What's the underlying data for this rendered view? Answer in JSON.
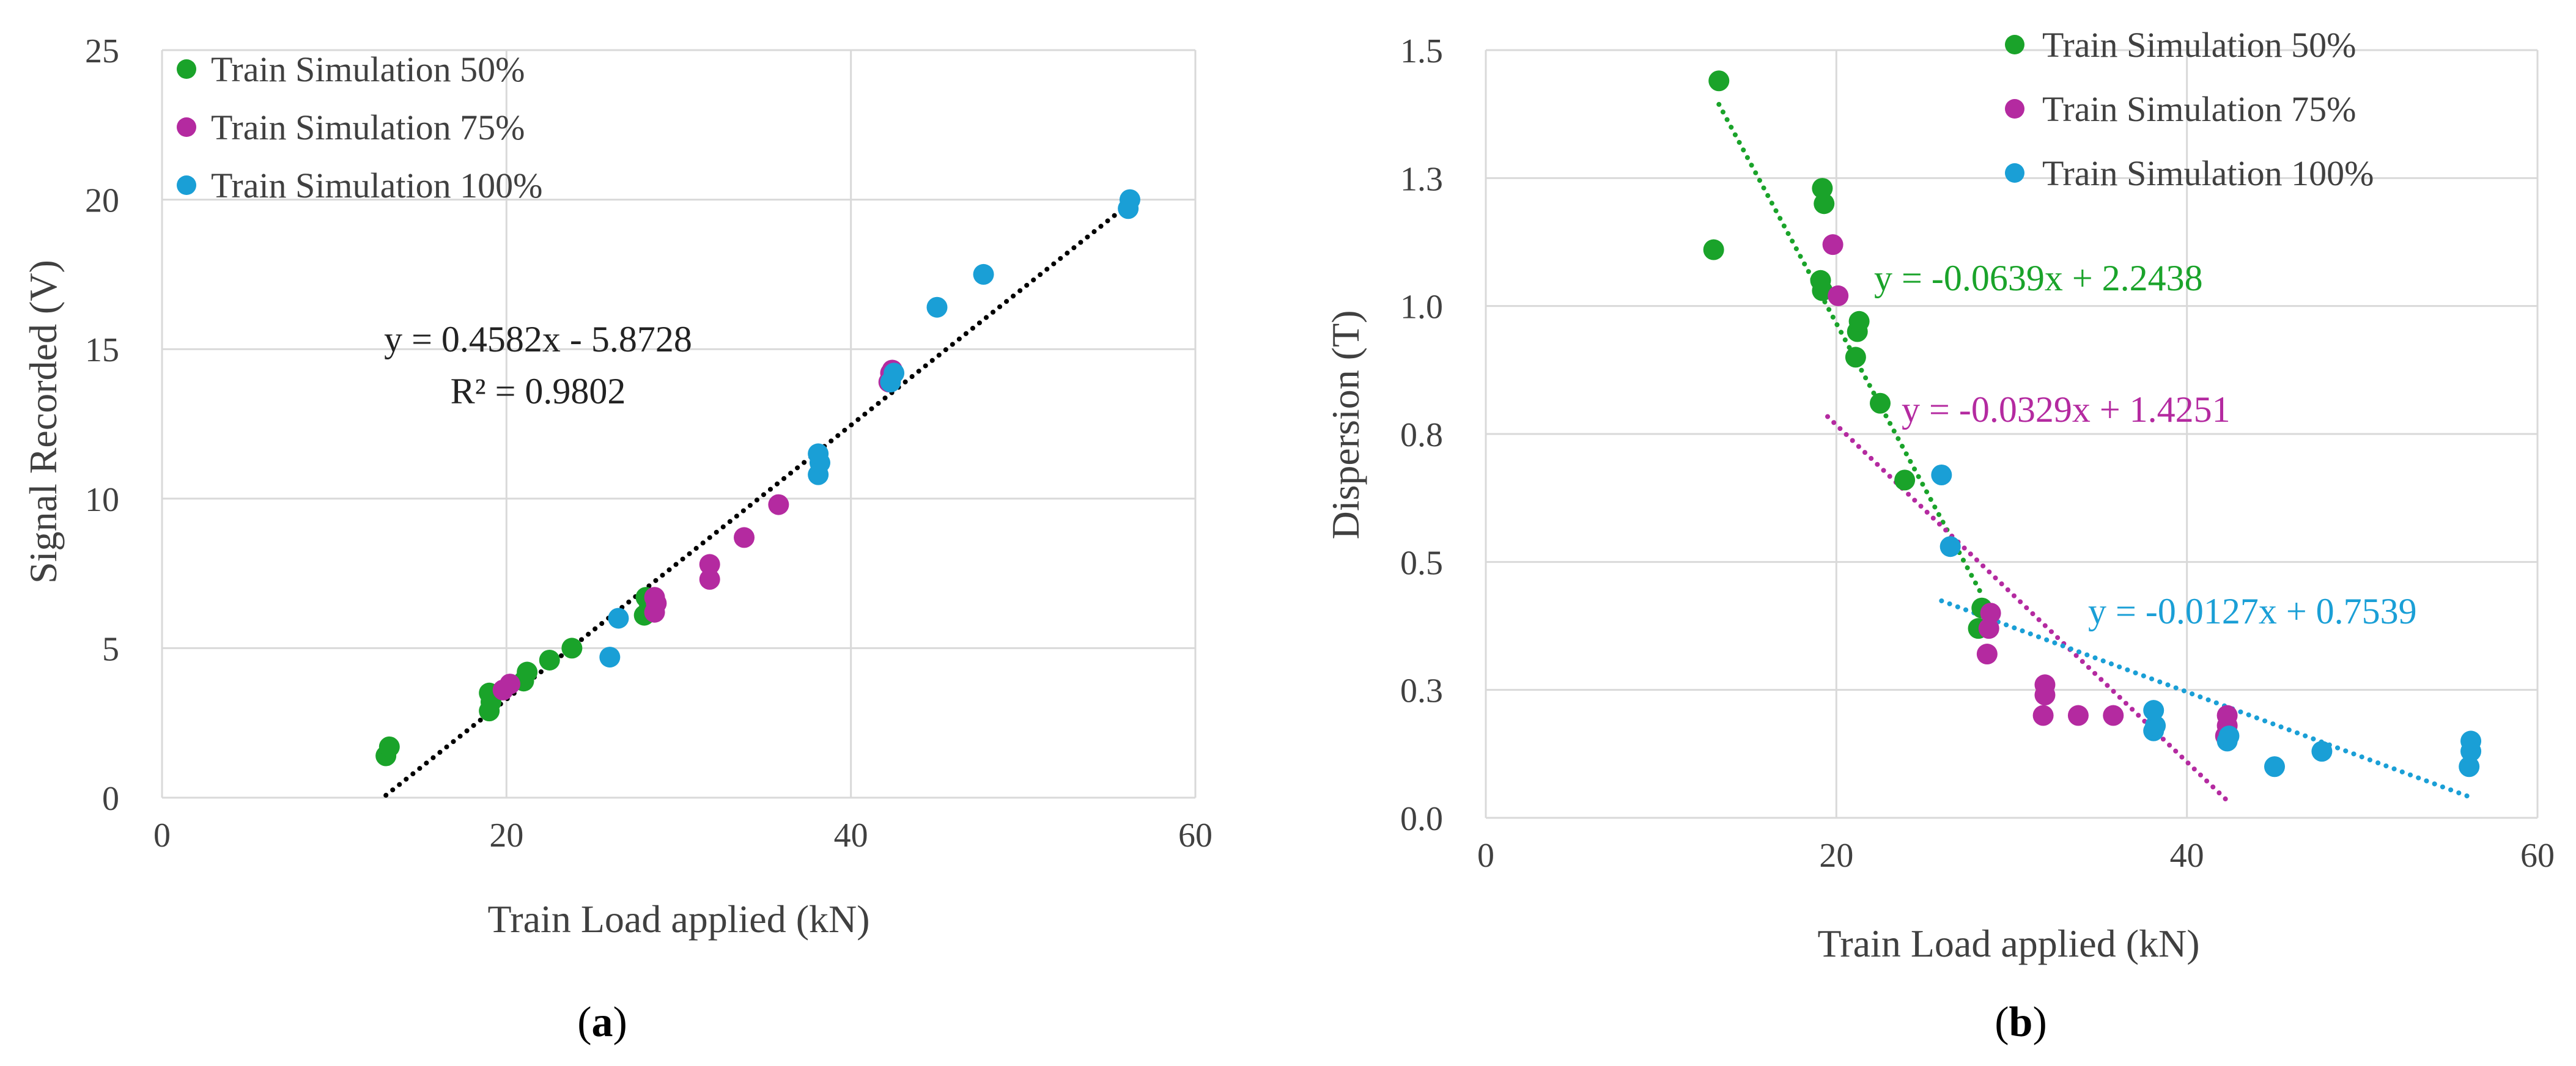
{
  "chart_data": [
    {
      "type": "scatter",
      "panel_label": "a",
      "xlabel": "Train Load applied (kN)",
      "ylabel": "Signal Recorded (V)",
      "xlim": [
        0,
        60
      ],
      "ylim": [
        0,
        25
      ],
      "xticks": [
        "0",
        "20",
        "40",
        "60"
      ],
      "yticks": [
        "0",
        "5",
        "10",
        "15",
        "20",
        "25"
      ],
      "grid": true,
      "legend_position": "top-left",
      "series": [
        {
          "name": "Train Simulation 50%",
          "color": "#1aa32a",
          "points": [
            [
              13.0,
              1.4
            ],
            [
              13.2,
              1.7
            ],
            [
              19.0,
              2.9
            ],
            [
              19.1,
              3.2
            ],
            [
              19.0,
              3.5
            ],
            [
              21.0,
              3.9
            ],
            [
              21.2,
              4.2
            ],
            [
              22.5,
              4.6
            ],
            [
              23.8,
              5.0
            ],
            [
              28.0,
              6.1
            ],
            [
              28.3,
              6.4
            ],
            [
              28.1,
              6.7
            ]
          ]
        },
        {
          "name": "Train Simulation 75%",
          "color": "#b42aa0",
          "points": [
            [
              19.8,
              3.6
            ],
            [
              20.2,
              3.8
            ],
            [
              28.6,
              6.2
            ],
            [
              28.7,
              6.5
            ],
            [
              28.6,
              6.7
            ],
            [
              31.8,
              7.3
            ],
            [
              31.8,
              7.8
            ],
            [
              33.8,
              8.7
            ],
            [
              35.8,
              9.8
            ],
            [
              42.2,
              13.9
            ],
            [
              42.3,
              14.2
            ],
            [
              42.4,
              14.3
            ]
          ]
        },
        {
          "name": "Train Simulation 100%",
          "color": "#1a9fd6",
          "points": [
            [
              26.0,
              4.7
            ],
            [
              26.5,
              6.0
            ],
            [
              38.1,
              10.8
            ],
            [
              38.2,
              11.2
            ],
            [
              38.1,
              11.5
            ],
            [
              42.3,
              13.9
            ],
            [
              42.5,
              14.2
            ],
            [
              45.0,
              16.4
            ],
            [
              47.7,
              17.5
            ],
            [
              56.1,
              19.7
            ],
            [
              56.2,
              20.0
            ]
          ]
        }
      ],
      "trendlines": [
        {
          "color": "#000000",
          "x": [
            13.0,
            56.0
          ],
          "y": [
            0.08,
            19.79
          ],
          "style": "dotted"
        }
      ],
      "annotations": [
        {
          "text": "y = 0.4582x - 5.8728",
          "color": "#222222"
        },
        {
          "text": "R² = 0.9802",
          "color": "#222222"
        }
      ]
    },
    {
      "type": "scatter",
      "panel_label": "b",
      "xlabel": "Train Load applied (kN)",
      "ylabel": "Dispersion (T)",
      "xlim": [
        0,
        60
      ],
      "ylim": [
        0,
        1.5
      ],
      "xticks": [
        "0",
        "20",
        "40",
        "60"
      ],
      "yticks": [
        "0.0",
        "0.3",
        "0.5",
        "0.8",
        "1.0",
        "1.3",
        "1.5"
      ],
      "grid": true,
      "legend_position": "top-right",
      "series": [
        {
          "name": "Train Simulation 50%",
          "color": "#1aa32a",
          "points": [
            [
              13.0,
              1.11
            ],
            [
              13.3,
              1.44
            ],
            [
              19.2,
              1.03
            ],
            [
              19.1,
              1.05
            ],
            [
              19.3,
              1.2
            ],
            [
              19.2,
              1.23
            ],
            [
              21.1,
              0.9
            ],
            [
              21.2,
              0.95
            ],
            [
              21.3,
              0.97
            ],
            [
              22.5,
              0.81
            ],
            [
              23.9,
              0.66
            ],
            [
              28.1,
              0.37
            ],
            [
              28.3,
              0.41
            ]
          ]
        },
        {
          "name": "Train Simulation 75%",
          "color": "#b42aa0",
          "points": [
            [
              19.8,
              1.12
            ],
            [
              20.1,
              1.02
            ],
            [
              28.6,
              0.32
            ],
            [
              28.7,
              0.37
            ],
            [
              28.8,
              0.4
            ],
            [
              31.8,
              0.2
            ],
            [
              31.9,
              0.24
            ],
            [
              31.9,
              0.26
            ],
            [
              33.8,
              0.2
            ],
            [
              35.8,
              0.2
            ],
            [
              42.2,
              0.16
            ],
            [
              42.3,
              0.18
            ],
            [
              42.3,
              0.2
            ]
          ]
        },
        {
          "name": "Train Simulation 100%",
          "color": "#1a9fd6",
          "points": [
            [
              26.0,
              0.67
            ],
            [
              26.5,
              0.53
            ],
            [
              38.1,
              0.17
            ],
            [
              38.2,
              0.18
            ],
            [
              38.1,
              0.21
            ],
            [
              42.3,
              0.15
            ],
            [
              42.4,
              0.16
            ],
            [
              45.0,
              0.1
            ],
            [
              47.7,
              0.13
            ],
            [
              56.1,
              0.1
            ],
            [
              56.2,
              0.13
            ],
            [
              56.2,
              0.15
            ]
          ]
        }
      ],
      "trendlines": [
        {
          "color": "#1aa32a",
          "x": [
            13.3,
            28.3
          ],
          "y": [
            1.394,
            0.436
          ],
          "style": "dotted"
        },
        {
          "color": "#b42aa0",
          "x": [
            19.5,
            42.5
          ],
          "y": [
            0.784,
            0.027
          ],
          "style": "dotted"
        },
        {
          "color": "#1a9fd6",
          "x": [
            26.0,
            56.2
          ],
          "y": [
            0.424,
            0.04
          ],
          "style": "dotted"
        }
      ],
      "annotations": [
        {
          "text": "y = -0.0639x + 2.2438",
          "color": "#1aa32a"
        },
        {
          "text": "y = -0.0329x + 1.4251",
          "color": "#b42aa0"
        },
        {
          "text": "y = -0.0127x + 0.7539",
          "color": "#1a9fd6"
        }
      ]
    }
  ]
}
